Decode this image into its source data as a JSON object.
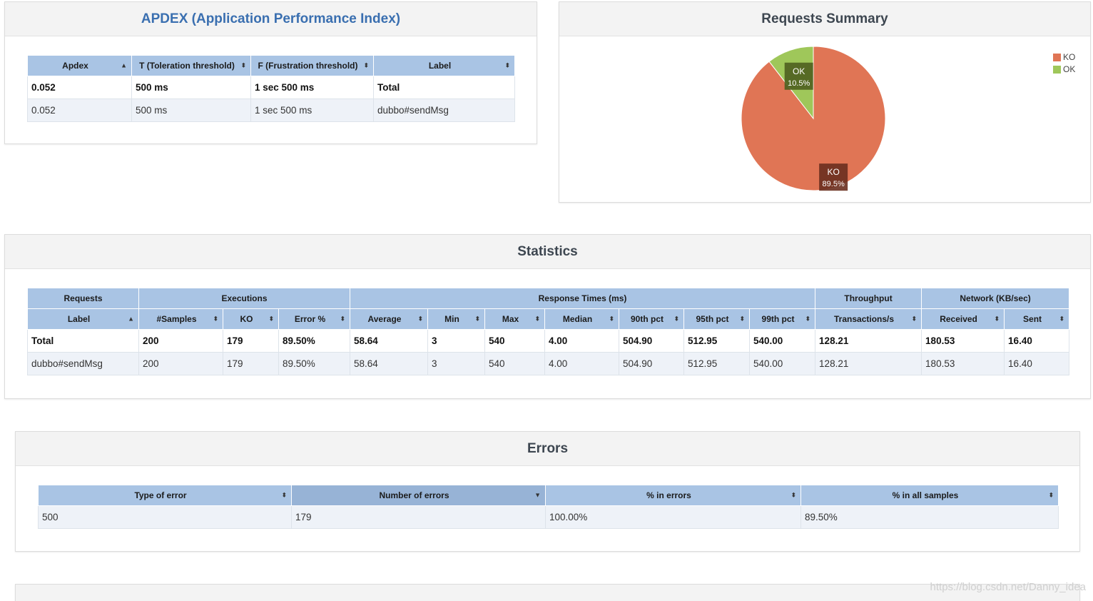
{
  "apdex": {
    "title": "APDEX (Application Performance Index)",
    "headers": [
      "Apdex",
      "T (Toleration threshold)",
      "F (Frustration threshold)",
      "Label"
    ],
    "rows": [
      [
        "0.052",
        "500 ms",
        "1 sec 500 ms",
        "Total"
      ],
      [
        "0.052",
        "500 ms",
        "1 sec 500 ms",
        "dubbo#sendMsg"
      ]
    ]
  },
  "summary": {
    "title": "Requests Summary",
    "legend": [
      "KO",
      "OK"
    ]
  },
  "chart_data": {
    "type": "pie",
    "title": "Requests Summary",
    "categories": [
      "KO",
      "OK"
    ],
    "values": [
      89.5,
      10.5
    ],
    "labels": [
      "89.5%",
      "10.5%"
    ],
    "colors": [
      "#e07555",
      "#9fc75a"
    ],
    "legend": "top-right"
  },
  "statistics": {
    "title": "Statistics",
    "groups": [
      "Requests",
      "Executions",
      "Response Times (ms)",
      "Throughput",
      "Network (KB/sec)"
    ],
    "headers": [
      "Label",
      "#Samples",
      "KO",
      "Error %",
      "Average",
      "Min",
      "Max",
      "Median",
      "90th pct",
      "95th pct",
      "99th pct",
      "Transactions/s",
      "Received",
      "Sent"
    ],
    "rows": [
      [
        "Total",
        "200",
        "179",
        "89.50%",
        "58.64",
        "3",
        "540",
        "4.00",
        "504.90",
        "512.95",
        "540.00",
        "128.21",
        "180.53",
        "16.40"
      ],
      [
        "dubbo#sendMsg",
        "200",
        "179",
        "89.50%",
        "58.64",
        "3",
        "540",
        "4.00",
        "504.90",
        "512.95",
        "540.00",
        "128.21",
        "180.53",
        "16.40"
      ]
    ]
  },
  "errors": {
    "title": "Errors",
    "headers": [
      "Type of error",
      "Number of errors",
      "% in errors",
      "% in all samples"
    ],
    "rows": [
      [
        "500",
        "179",
        "100.00%",
        "89.50%"
      ]
    ]
  },
  "watermark": "https://blog.csdn.net/Danny_idea"
}
